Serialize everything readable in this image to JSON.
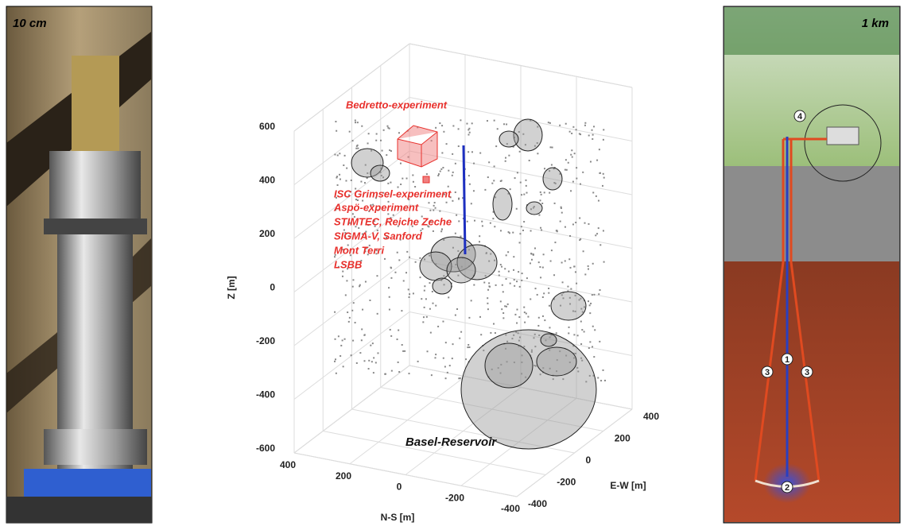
{
  "panels": {
    "left_label": "10 cm",
    "right_label": "1 km",
    "markers": [
      "1",
      "2",
      "3",
      "3",
      "4"
    ]
  },
  "chart_data": {
    "type": "scatter3d",
    "zlabel": "Z [m]",
    "xlabel": "N-S [m]",
    "ylabel": "E-W [m]",
    "zlim": [
      -600,
      600
    ],
    "zticks": [
      -600,
      -400,
      -200,
      0,
      200,
      400,
      600
    ],
    "xlim": [
      -400,
      400
    ],
    "xticks": [
      400,
      200,
      0,
      -200,
      -400
    ],
    "ylim": [
      -400,
      400
    ],
    "yticks": [
      400,
      200,
      0,
      -200,
      -400
    ],
    "annotations": [
      "Bedretto-experiment",
      "ISC Grimsel-experiment",
      "Aspö-experiment",
      "STIMTEC, Reiche Zeche",
      "SIGMA-V, Sanford",
      "Mont Terri",
      "LSBB",
      "Basel-Reservoir"
    ],
    "grid": true
  }
}
